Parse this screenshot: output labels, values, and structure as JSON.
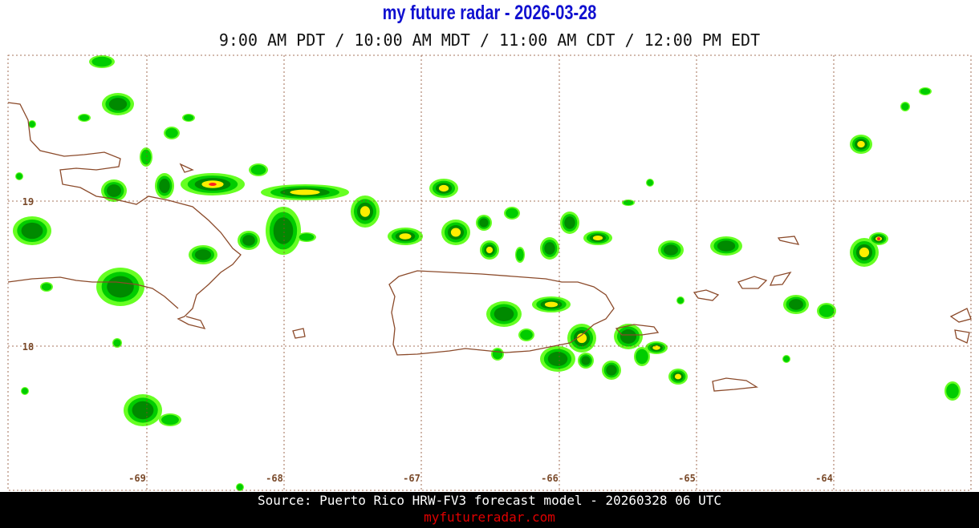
{
  "header": {
    "title": "my future radar - 2026-03-28",
    "subtitle": "9:00 AM PDT / 10:00 AM MDT / 11:00 AM CDT / 12:00 PM EDT"
  },
  "map": {
    "lat_labels": [
      "19",
      "18"
    ],
    "lon_labels": [
      "-69",
      "-68",
      "-67",
      "-66",
      "-65",
      "-64"
    ]
  },
  "footer": {
    "source": "Source: Puerto Rico HRW-FV3 forecast model - 20260328 06 UTC",
    "site": "myfutureradar.com"
  }
}
